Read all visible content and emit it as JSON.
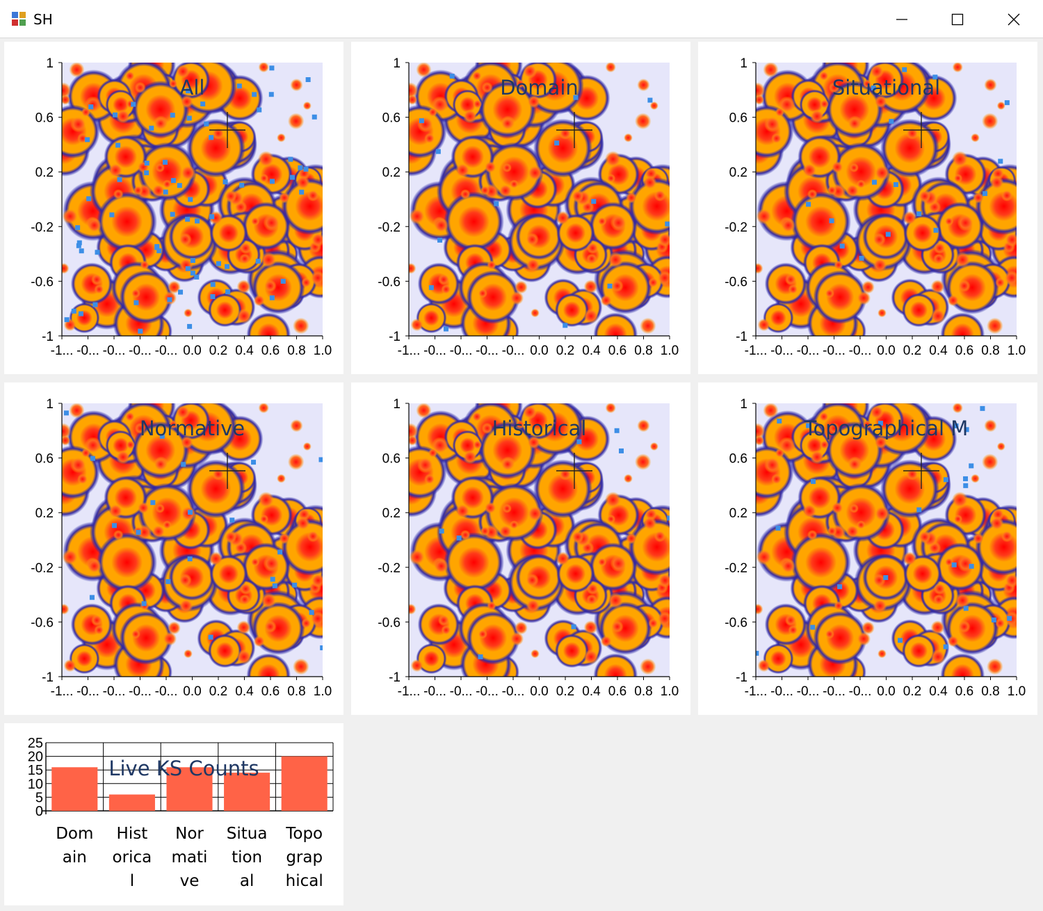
{
  "window": {
    "title": "SH",
    "icons": [
      "app-icon",
      "minimize-icon",
      "maximize-icon",
      "close-icon"
    ]
  },
  "colors": {
    "background": "#e6e6fa",
    "outer_glow": "#1a1aa6",
    "fill": "#ffa500",
    "core": "#ff0000",
    "marker": "#3c8ee6",
    "bar": "#ff6347",
    "title": "#1f3864"
  },
  "heatmaps": [
    {
      "title": "All"
    },
    {
      "title": "Domain"
    },
    {
      "title": "Situational"
    },
    {
      "title": "Normative"
    },
    {
      "title": "Historical"
    },
    {
      "title": "Topographical M"
    }
  ],
  "heatmap_axes": {
    "y_ticks": [
      "1",
      "0.6",
      "0.2",
      "-0.2",
      "-0.6",
      "-1"
    ],
    "x_ticks": [
      "-1...",
      "-0...",
      "-0...",
      "-0...",
      "-0...",
      "0.0",
      "0.2",
      "0.4",
      "0.6",
      "0.8",
      "1.0"
    ]
  },
  "chart_data": {
    "type": "bar",
    "title": "Live KS Counts",
    "categories": [
      "Domain",
      "Historical",
      "Normative",
      "Situational",
      "Topographical"
    ],
    "category_labels": [
      [
        "Dom",
        "ain"
      ],
      [
        "Hist",
        "orica",
        "l"
      ],
      [
        "Nor",
        "mati",
        "ve"
      ],
      [
        "Situa",
        "tion",
        "al"
      ],
      [
        "Topo",
        "grap",
        "hical"
      ]
    ],
    "values": [
      16,
      6,
      16,
      14,
      20
    ],
    "y_ticks": [
      "25",
      "20",
      "15",
      "10",
      "5",
      "0"
    ],
    "ylim": [
      0,
      25
    ],
    "grid": true
  }
}
